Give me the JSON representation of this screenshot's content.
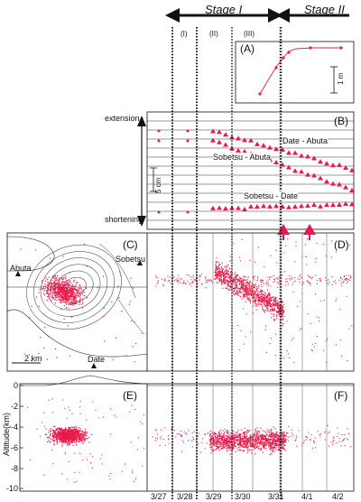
{
  "stages": {
    "stage1": "Stage I",
    "stage2": "Stage II"
  },
  "phases": [
    "(I)",
    "(II)",
    "(III)"
  ],
  "panels": {
    "a": "(A)",
    "b": "(B)",
    "c": "(C)",
    "d": "(D)",
    "e": "(E)",
    "f": "(F)"
  },
  "panel_a": {
    "scale_label": "1 m"
  },
  "panel_b": {
    "extension_label": "extension",
    "shortening_label": "shortening",
    "scale_label": "5 cm",
    "series_labels": [
      "Date - Abuta",
      "Sobetsu - Abuta",
      "Sobetsu - Date"
    ]
  },
  "panel_c": {
    "places": [
      "Abuta",
      "Sobetsu",
      "Date"
    ],
    "scale_label": "2 km"
  },
  "panel_e": {
    "ylabel": "Altitude(km)",
    "yticks": [
      "0",
      "-2",
      "-4",
      "-6",
      "-8",
      "-10"
    ]
  },
  "dates": [
    "3/27",
    "3/28",
    "3/29",
    "3/30",
    "3/31",
    "4/1",
    "4/2"
  ],
  "colors": {
    "quake": "#e8194a",
    "arrow": "#e8194a",
    "ink": "#111111"
  }
}
